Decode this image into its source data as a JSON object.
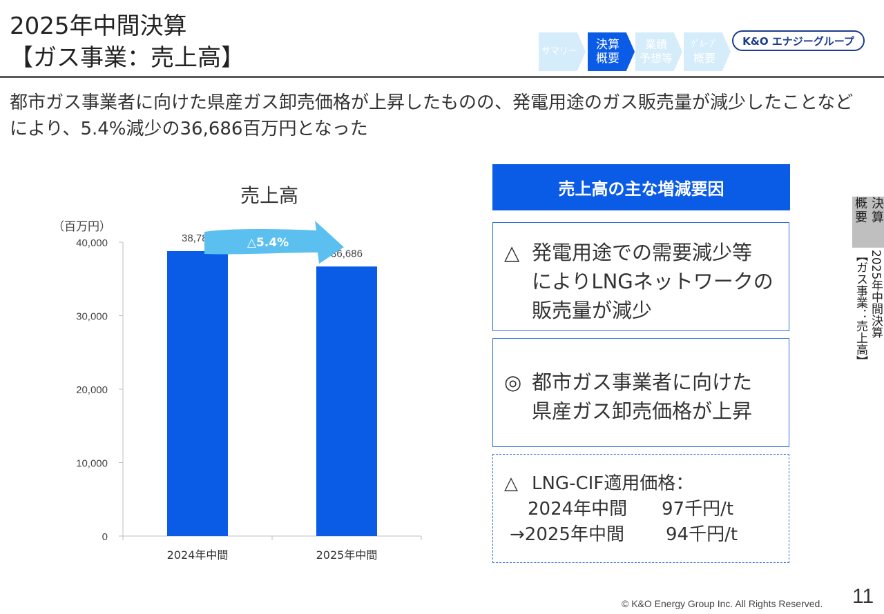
{
  "title": {
    "line1": "2025年中間決算",
    "line2": "【ガス事業：売上高】"
  },
  "nav": [
    {
      "label1": "サマリー",
      "label2": "",
      "active": false
    },
    {
      "label1": "決算",
      "label2": "概要",
      "active": true
    },
    {
      "label1": "業績",
      "label2": "予想等",
      "active": false
    },
    {
      "label1": "ｸﾞﾙｰﾌﾟ",
      "label2": "概要",
      "active": false
    }
  ],
  "logo": "K&O エナジーグループ",
  "headline": "都市ガス事業者に向けた県産ガス卸売価格が上昇したものの、発電用途のガス販売量が減少したことなどにより、5.4%減少の36,686百万円となった",
  "colors": {
    "accent": "#0a5be6",
    "bar": "#0a5be6",
    "arrow": "#5bc0f0",
    "nav_inactive": "#d5ecfb"
  },
  "chart_data": {
    "type": "bar",
    "title": "売上高",
    "ylabel": "（百万円）",
    "categories": [
      "2024年中間",
      "2025年中間"
    ],
    "values": [
      38782,
      36686
    ],
    "value_labels": [
      "38,782",
      "36,686"
    ],
    "ylim": [
      0,
      40000
    ],
    "yticks": [
      0,
      10000,
      20000,
      30000,
      40000
    ],
    "ytick_labels": [
      "0",
      "10,000",
      "20,000",
      "30,000",
      "40,000"
    ],
    "grid": false,
    "annotation": "△5.4%"
  },
  "factors": {
    "header": "売上高の主な増減要因",
    "items": [
      {
        "symbol": "△",
        "lines": [
          "発電用途での需要減少等",
          "によりLNGネットワークの",
          "販売量が減少"
        ]
      },
      {
        "symbol": "◎",
        "lines": [
          "都市ガス事業者に向けた",
          "県産ガス卸売価格が上昇"
        ]
      }
    ],
    "lng": {
      "symbol": "△",
      "title": "LNG-CIF適用価格：",
      "row1_period": "2024年中間",
      "row1_value": "97千円/t",
      "row2_period": "→2025年中間",
      "row2_value": "94千円/t"
    }
  },
  "side": {
    "tab_col1": "決算",
    "tab_col2": "概要",
    "sub_col1": "2025年中間決算",
    "sub_col2": "【ガス事業：売上高】"
  },
  "footer": {
    "copyright": "© K&O Energy Group Inc. All Rights Reserved.",
    "page": "11"
  }
}
